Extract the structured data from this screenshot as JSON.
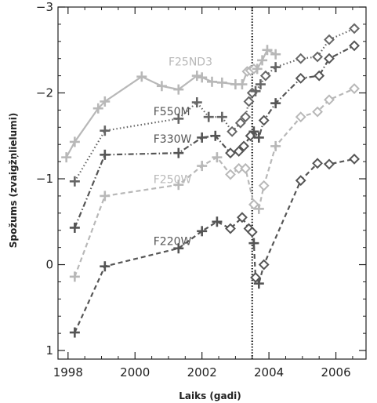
{
  "chart_data": {
    "type": "line",
    "title": "",
    "xlabel": "Laiks (gadi)",
    "ylabel": "Spožums (zvaigžņlielumi)",
    "xlim": [
      1997.7,
      2006.9
    ],
    "ylim": [
      1.1,
      -3.0
    ],
    "y_inverted": true,
    "grid": false,
    "legend": "labels placed next to series",
    "x_ticks": [
      1998,
      2000,
      2002,
      2004,
      2006
    ],
    "y_ticks": [
      -3,
      -2,
      -1,
      0,
      1
    ],
    "y_tick_labels": [
      "−3",
      "−2",
      "−1",
      "0",
      "1"
    ],
    "reference_line": {
      "x": 2003.5,
      "style": "dotted"
    },
    "series": [
      {
        "name": "F25ND3",
        "color": "#b8b8b8",
        "dash": "solid",
        "points": [
          {
            "x": 1997.95,
            "y": -1.25,
            "m": "+"
          },
          {
            "x": 1998.2,
            "y": -1.43,
            "m": "+"
          },
          {
            "x": 1998.9,
            "y": -1.82,
            "m": "+"
          },
          {
            "x": 1999.1,
            "y": -1.9,
            "m": "+"
          },
          {
            "x": 2000.2,
            "y": -2.19,
            "m": "+"
          },
          {
            "x": 2000.8,
            "y": -2.08,
            "m": "+"
          },
          {
            "x": 2001.3,
            "y": -2.04,
            "m": "+"
          },
          {
            "x": 2001.85,
            "y": -2.2,
            "m": "+"
          },
          {
            "x": 2002.0,
            "y": -2.18,
            "m": "+"
          },
          {
            "x": 2002.3,
            "y": -2.13,
            "m": "+"
          },
          {
            "x": 2002.6,
            "y": -2.12,
            "m": "+"
          },
          {
            "x": 2003.0,
            "y": -2.1,
            "m": "+"
          },
          {
            "x": 2003.2,
            "y": -2.1,
            "m": "+"
          },
          {
            "x": 2003.35,
            "y": -2.25,
            "m": "d"
          },
          {
            "x": 2003.45,
            "y": -2.26,
            "m": "d"
          },
          {
            "x": 2003.55,
            "y": -2.28,
            "m": "d"
          },
          {
            "x": 2003.65,
            "y": -2.28,
            "m": "+"
          },
          {
            "x": 2003.8,
            "y": -2.38,
            "m": "+"
          },
          {
            "x": 2003.95,
            "y": -2.5,
            "m": "+"
          },
          {
            "x": 2004.2,
            "y": -2.45,
            "m": "+"
          }
        ]
      },
      {
        "name": "F550M",
        "color": "#666666",
        "dash": "dotted",
        "points": [
          {
            "x": 1998.2,
            "y": -0.97,
            "m": "+"
          },
          {
            "x": 1999.1,
            "y": -1.56,
            "m": "+"
          },
          {
            "x": 2001.3,
            "y": -1.7,
            "m": "+"
          },
          {
            "x": 2001.85,
            "y": -1.89,
            "m": "+"
          },
          {
            "x": 2002.2,
            "y": -1.72,
            "m": "+"
          },
          {
            "x": 2002.6,
            "y": -1.72,
            "m": "+"
          },
          {
            "x": 2002.9,
            "y": -1.55,
            "m": "d"
          },
          {
            "x": 2003.15,
            "y": -1.65,
            "m": "d"
          },
          {
            "x": 2003.3,
            "y": -1.72,
            "m": "d"
          },
          {
            "x": 2003.4,
            "y": -1.9,
            "m": "d"
          },
          {
            "x": 2003.5,
            "y": -2.0,
            "m": "d"
          },
          {
            "x": 2003.6,
            "y": -2.02,
            "m": "+"
          },
          {
            "x": 2003.75,
            "y": -2.1,
            "m": "+"
          },
          {
            "x": 2003.9,
            "y": -2.2,
            "m": "d"
          },
          {
            "x": 2004.2,
            "y": -2.3,
            "m": "+"
          },
          {
            "x": 2004.95,
            "y": -2.4,
            "m": "d"
          },
          {
            "x": 2005.45,
            "y": -2.42,
            "m": "d"
          },
          {
            "x": 2005.8,
            "y": -2.62,
            "m": "d"
          },
          {
            "x": 2006.55,
            "y": -2.75,
            "m": "d"
          }
        ]
      },
      {
        "name": "F330W",
        "color": "#555555",
        "dash": "dashdot",
        "points": [
          {
            "x": 1998.2,
            "y": -0.43,
            "m": "+"
          },
          {
            "x": 1999.1,
            "y": -1.28,
            "m": "+"
          },
          {
            "x": 2001.3,
            "y": -1.3,
            "m": "+"
          },
          {
            "x": 2002.0,
            "y": -1.48,
            "m": "+"
          },
          {
            "x": 2002.4,
            "y": -1.5,
            "m": "+"
          },
          {
            "x": 2002.85,
            "y": -1.3,
            "m": "d"
          },
          {
            "x": 2003.1,
            "y": -1.32,
            "m": "d"
          },
          {
            "x": 2003.25,
            "y": -1.38,
            "m": "d"
          },
          {
            "x": 2003.45,
            "y": -1.5,
            "m": "d"
          },
          {
            "x": 2003.55,
            "y": -1.55,
            "m": "+"
          },
          {
            "x": 2003.7,
            "y": -1.48,
            "m": "+"
          },
          {
            "x": 2003.85,
            "y": -1.68,
            "m": "d"
          },
          {
            "x": 2004.2,
            "y": -1.88,
            "m": "+"
          },
          {
            "x": 2004.95,
            "y": -2.17,
            "m": "d"
          },
          {
            "x": 2005.5,
            "y": -2.2,
            "m": "d"
          },
          {
            "x": 2005.8,
            "y": -2.4,
            "m": "d"
          },
          {
            "x": 2006.55,
            "y": -2.55,
            "m": "d"
          }
        ]
      },
      {
        "name": "F250W",
        "color": "#b8b8b8",
        "dash": "dashed",
        "points": [
          {
            "x": 1998.2,
            "y": 0.14,
            "m": "+"
          },
          {
            "x": 1999.1,
            "y": -0.8,
            "m": "+"
          },
          {
            "x": 2001.3,
            "y": -0.93,
            "m": "+"
          },
          {
            "x": 2002.0,
            "y": -1.15,
            "m": "+"
          },
          {
            "x": 2002.45,
            "y": -1.25,
            "m": "+"
          },
          {
            "x": 2002.85,
            "y": -1.05,
            "m": "d"
          },
          {
            "x": 2003.1,
            "y": -1.12,
            "m": "d"
          },
          {
            "x": 2003.3,
            "y": -1.12,
            "m": "d"
          },
          {
            "x": 2003.55,
            "y": -0.7,
            "m": "d"
          },
          {
            "x": 2003.7,
            "y": -0.65,
            "m": "+"
          },
          {
            "x": 2003.85,
            "y": -0.92,
            "m": "d"
          },
          {
            "x": 2004.2,
            "y": -1.38,
            "m": "+"
          },
          {
            "x": 2004.95,
            "y": -1.72,
            "m": "d"
          },
          {
            "x": 2005.45,
            "y": -1.78,
            "m": "d"
          },
          {
            "x": 2005.8,
            "y": -1.92,
            "m": "d"
          },
          {
            "x": 2006.55,
            "y": -2.05,
            "m": "d"
          }
        ]
      },
      {
        "name": "F220W",
        "color": "#555555",
        "dash": "dashed",
        "points": [
          {
            "x": 1998.2,
            "y": 0.79,
            "m": "+"
          },
          {
            "x": 1999.1,
            "y": 0.02,
            "m": "+"
          },
          {
            "x": 2001.3,
            "y": -0.19,
            "m": "+"
          },
          {
            "x": 2002.0,
            "y": -0.39,
            "m": "+"
          },
          {
            "x": 2002.45,
            "y": -0.5,
            "m": "+"
          },
          {
            "x": 2002.85,
            "y": -0.42,
            "m": "d"
          },
          {
            "x": 2003.2,
            "y": -0.55,
            "m": "d"
          },
          {
            "x": 2003.4,
            "y": -0.42,
            "m": "d"
          },
          {
            "x": 2003.5,
            "y": -0.38,
            "m": "d"
          },
          {
            "x": 2003.55,
            "y": -0.25,
            "m": "+"
          },
          {
            "x": 2003.6,
            "y": 0.15,
            "m": "d"
          },
          {
            "x": 2003.7,
            "y": 0.22,
            "m": "+"
          },
          {
            "x": 2003.85,
            "y": 0.0,
            "m": "d"
          },
          {
            "x": 2004.95,
            "y": -0.98,
            "m": "d"
          },
          {
            "x": 2005.45,
            "y": -1.18,
            "m": "d"
          },
          {
            "x": 2005.8,
            "y": -1.17,
            "m": "d"
          },
          {
            "x": 2006.55,
            "y": -1.23,
            "m": "d"
          }
        ]
      }
    ],
    "series_labels": [
      {
        "series": "F25ND3",
        "text": "F25ND3",
        "x": 2001.0,
        "y": -2.32,
        "color": "#b8b8b8"
      },
      {
        "series": "F550M",
        "text": "F550M",
        "x": 2000.55,
        "y": -1.74,
        "color": "#555555"
      },
      {
        "series": "F330W",
        "text": "F330W",
        "x": 2000.55,
        "y": -1.42,
        "color": "#555555"
      },
      {
        "series": "F250W",
        "text": "F250W",
        "x": 2000.55,
        "y": -0.95,
        "color": "#b8b8b8"
      },
      {
        "series": "F220W",
        "text": "F220W",
        "x": 2000.55,
        "y": -0.23,
        "color": "#555555"
      }
    ]
  }
}
